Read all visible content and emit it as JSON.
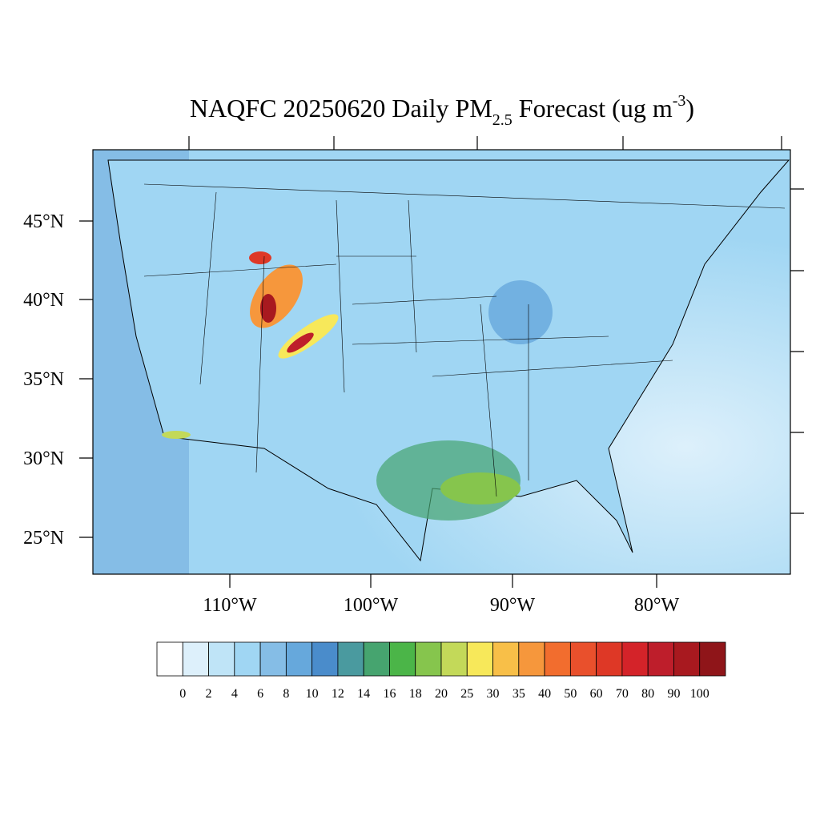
{
  "title": {
    "main": "NAQFC 20250620 Daily PM",
    "subscript": "2.5",
    "after": " Forecast (ug m",
    "superscript": "-3",
    "close": ")"
  },
  "map": {
    "lat_labels": [
      "45°N",
      "40°N",
      "35°N",
      "30°N",
      "25°N"
    ],
    "lon_labels": [
      "110°W",
      "100°W",
      "90°W",
      "80°W"
    ]
  },
  "colorbar": {
    "levels": [
      0,
      2,
      4,
      6,
      8,
      10,
      12,
      14,
      16,
      18,
      20,
      25,
      30,
      35,
      40,
      50,
      60,
      70,
      80,
      90,
      100
    ],
    "colors": [
      "#ffffff",
      "#ddf0fb",
      "#bfe4f7",
      "#a0d6f3",
      "#85bde6",
      "#66a8dc",
      "#4a8ccb",
      "#4a9a9f",
      "#46a46f",
      "#4bb548",
      "#86c54d",
      "#c3d959",
      "#f7e85a",
      "#f8bf48",
      "#f6973c",
      "#f26d2e",
      "#e9502c",
      "#de3826",
      "#d42329",
      "#be1e2b",
      "#a8191f",
      "#8f1519"
    ]
  }
}
